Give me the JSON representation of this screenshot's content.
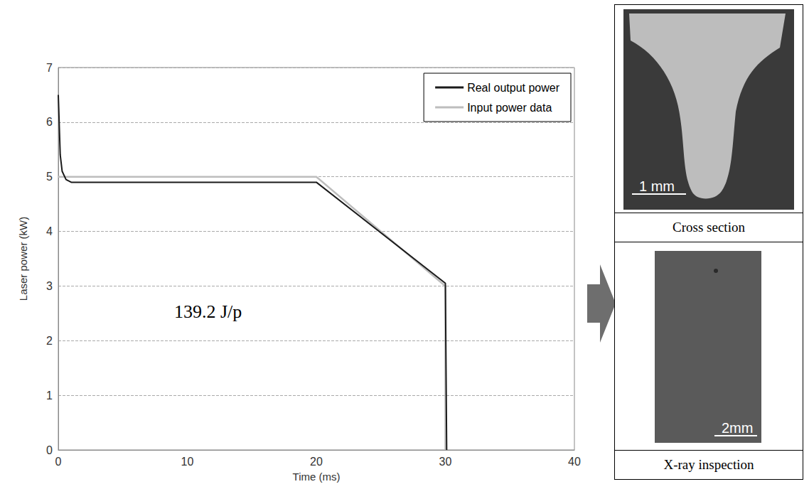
{
  "chart_data": {
    "type": "line",
    "x_label": "Time (ms)",
    "y_label": "Laser power (kW)",
    "xlim": [
      0,
      40
    ],
    "xticks": [
      0,
      10,
      20,
      30,
      40
    ],
    "ylim": [
      0,
      7
    ],
    "yticks": [
      0,
      1,
      2,
      3,
      4,
      5,
      6,
      7
    ],
    "grid": true,
    "legend": "upper right",
    "annotations": [
      "139.2 J/p"
    ],
    "series": [
      {
        "name": "Real output power",
        "color": "#1a1a1a",
        "x": [
          0,
          0.15,
          0.3,
          0.6,
          1,
          20,
          30,
          30.1
        ],
        "values": [
          6.5,
          5.4,
          5.1,
          4.95,
          4.9,
          4.9,
          3.05,
          0
        ]
      },
      {
        "name": "Input power data",
        "color": "#bdbdbd",
        "x": [
          0,
          20,
          30,
          30
        ],
        "values": [
          5,
          5,
          3,
          0
        ]
      }
    ]
  },
  "images": [
    {
      "caption": "Cross section",
      "scale_bar": "1 mm"
    },
    {
      "caption": "X-ray inspection",
      "scale_bar": "2mm"
    }
  ]
}
